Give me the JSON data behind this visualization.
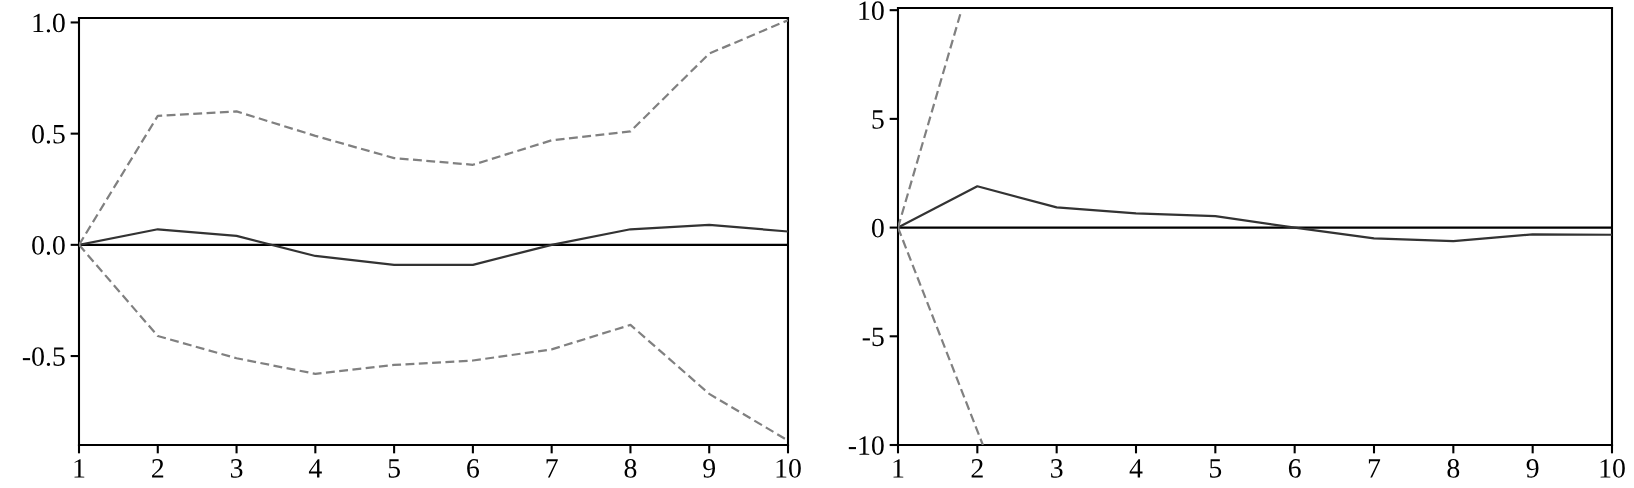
{
  "chart_data": [
    {
      "type": "line",
      "xlim": [
        1,
        10
      ],
      "xticks": [
        1,
        2,
        3,
        4,
        5,
        6,
        7,
        8,
        9,
        10
      ],
      "ylim": [
        -0.9,
        1.02
      ],
      "yticks": [
        {
          "value": -0.5,
          "label": "-0.5"
        },
        {
          "value": 0,
          "label": "0.0"
        },
        {
          "value": 0.5,
          "label": "0.5"
        },
        {
          "value": 1.0,
          "label": "1.0"
        }
      ],
      "grid": false,
      "legend": false,
      "ref_lines": [
        {
          "axis": "y",
          "value": 0,
          "color": "#000000",
          "line_style": "solid"
        }
      ],
      "series": [
        {
          "x": [
            1,
            2,
            3,
            4,
            5,
            6,
            7,
            8,
            9,
            10
          ],
          "values": [
            0,
            0.07,
            0.04,
            -0.05,
            -0.09,
            -0.09,
            0.0,
            0.07,
            0.09,
            0.06
          ],
          "color": "#333333",
          "line_style": "solid"
        },
        {
          "x": [
            1,
            2,
            3,
            4,
            5,
            6,
            7,
            8,
            9,
            10
          ],
          "values": [
            0,
            0.58,
            0.6,
            0.49,
            0.39,
            0.36,
            0.47,
            0.51,
            0.86,
            1.01
          ],
          "color": "#808080",
          "line_style": "dashed"
        },
        {
          "x": [
            1,
            2,
            3,
            4,
            5,
            6,
            7,
            8,
            9,
            10
          ],
          "values": [
            0,
            -0.41,
            -0.51,
            -0.58,
            -0.54,
            -0.52,
            -0.47,
            -0.36,
            -0.67,
            -0.88
          ],
          "color": "#808080",
          "line_style": "dashed"
        }
      ]
    },
    {
      "type": "line",
      "xlim": [
        1,
        10
      ],
      "xticks": [
        1,
        2,
        3,
        4,
        5,
        6,
        7,
        8,
        9,
        10
      ],
      "ylim": [
        -10,
        10.1
      ],
      "yticks": [
        -10,
        -5,
        0,
        5,
        10
      ],
      "grid": false,
      "legend": false,
      "ref_lines": [
        {
          "axis": "y",
          "value": 0,
          "color": "#000000",
          "line_style": "solid"
        }
      ],
      "series": [
        {
          "x": [
            1,
            2,
            3,
            4,
            5,
            6,
            7,
            8,
            9,
            10
          ],
          "values": [
            0,
            1.9,
            0.93,
            0.65,
            0.53,
            0,
            -0.5,
            -0.62,
            -0.31,
            -0.33
          ],
          "color": "#333333",
          "line_style": "solid"
        },
        {
          "x": [
            1,
            1.8
          ],
          "values": [
            0,
            10
          ],
          "color": "#808080",
          "line_style": "dashed"
        },
        {
          "x": [
            1,
            2.07
          ],
          "values": [
            0,
            -10
          ],
          "color": "#808080",
          "line_style": "dashed"
        }
      ]
    }
  ]
}
